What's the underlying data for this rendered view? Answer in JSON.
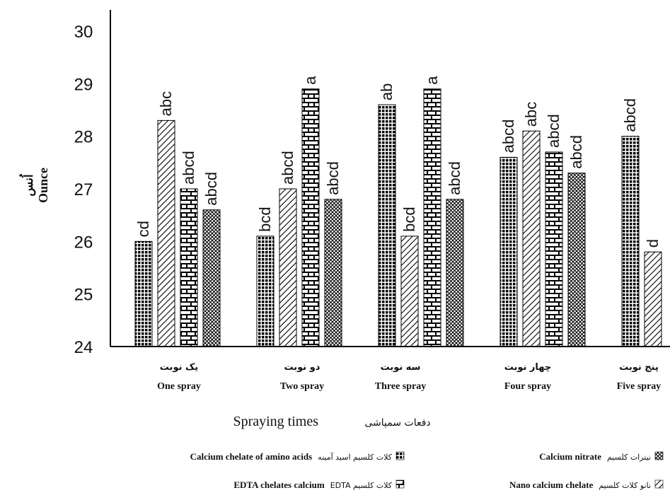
{
  "chart_data": {
    "type": "bar",
    "ylabel_fa": "اُنس",
    "ylabel_en": "Ounce",
    "ylim": [
      24,
      30
    ],
    "yticks": [
      "24",
      "25",
      "26",
      "27",
      "28",
      "29",
      "30"
    ],
    "xtitle_en": "Spraying times",
    "xtitle_fa": "دفعات سمپاشی",
    "grid": false,
    "legend_position": "bottom",
    "categories": [
      {
        "fa": "یک نوبت",
        "en": "One spray"
      },
      {
        "fa": "دو نوبت",
        "en": "Two spray"
      },
      {
        "fa": "سه نوبت",
        "en": "Three spray"
      },
      {
        "fa": "چهار نوبت",
        "en": "Four spray"
      },
      {
        "fa": "پنج نوبت",
        "en": "Five spray"
      }
    ],
    "series": [
      {
        "name": "Calcium chelate of amino acids",
        "name_fa": "کلات کلسیم اسید آمینه",
        "pattern": "dense-grid",
        "values": [
          26.0,
          26.1,
          28.6,
          27.6,
          28.0
        ],
        "labels": [
          "cd",
          "bcd",
          "ab",
          "abcd",
          "abcd"
        ]
      },
      {
        "name": "Nano calcium chelate",
        "name_fa": "نانو کلات کلسیم",
        "pattern": "diagonal",
        "values": [
          28.3,
          27.0,
          26.1,
          28.1,
          25.8
        ],
        "labels": [
          "abc",
          "abcd",
          "bcd",
          "abc",
          "d"
        ]
      },
      {
        "name": "EDTA chelates calcium",
        "name_fa": "EDTA کلات کلسیم",
        "pattern": "brick",
        "values": [
          27.0,
          28.9,
          28.9,
          27.7,
          null
        ],
        "labels": [
          "abcd",
          "a",
          "a",
          "abcd",
          ""
        ]
      },
      {
        "name": "Calcium nitrate",
        "name_fa": "نیترات کلسیم",
        "pattern": "crosshatch",
        "values": [
          26.6,
          26.8,
          26.8,
          27.3,
          null
        ],
        "labels": [
          "abcd",
          "abcd",
          "abcd",
          "abcd",
          ""
        ]
      }
    ],
    "legend_layout": [
      {
        "series": 0,
        "row": 0,
        "col": 0
      },
      {
        "series": 3,
        "row": 0,
        "col": 1
      },
      {
        "series": 2,
        "row": 1,
        "col": 0
      },
      {
        "series": 1,
        "row": 1,
        "col": 1
      }
    ]
  }
}
